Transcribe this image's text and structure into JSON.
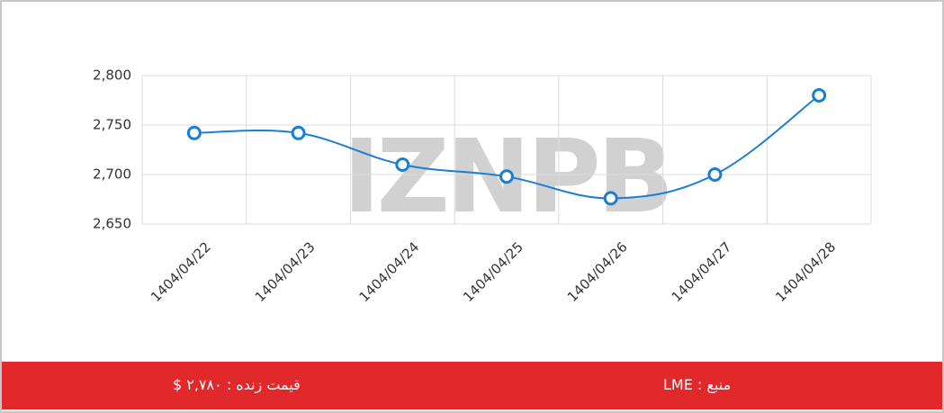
{
  "chart_data": {
    "type": "line",
    "categories": [
      "1404/04/22",
      "1404/04/23",
      "1404/04/24",
      "1404/04/25",
      "1404/04/26",
      "1404/04/27",
      "1404/04/28"
    ],
    "series": [
      {
        "name": "price",
        "color": "#1a7fd4",
        "values": [
          2742,
          2742,
          2710,
          2698,
          2676,
          2700,
          2780
        ]
      }
    ],
    "ylim": [
      2650,
      2800
    ],
    "yticks": [
      {
        "value": 2650,
        "label": "2,650"
      },
      {
        "value": 2700,
        "label": "2,700"
      },
      {
        "value": 2750,
        "label": "2,750"
      },
      {
        "value": 2800,
        "label": "2,800"
      }
    ],
    "grid": true,
    "watermark": "IZNPB"
  },
  "footer": {
    "live_price": "قیمت زنده : ۲,۷۸۰ $",
    "source": "منبع : LME"
  }
}
